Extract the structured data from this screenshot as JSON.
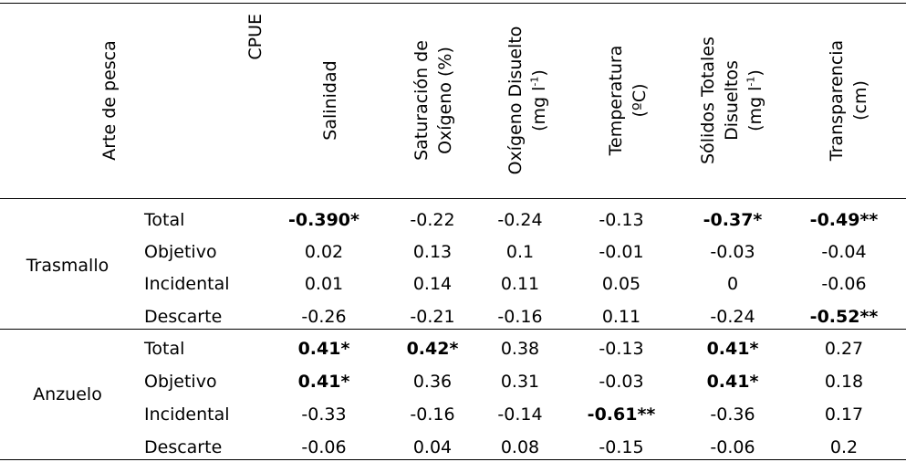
{
  "headers": {
    "arte": "Arte de pesca",
    "cpue": "CPUE",
    "salinidad": "Salinidad",
    "saturacion_l1": "Saturación de",
    "saturacion_l2": "Oxígeno (%)",
    "oxigeno_l1": "Oxígeno Disuelto",
    "oxigeno_l2a": "(mg l",
    "oxigeno_sup": "-1",
    "oxigeno_l2b": ")",
    "temperatura_l1": "Temperatura",
    "temperatura_l2": "(ºC)",
    "solidos_l1": "Sólidos Totales",
    "solidos_l2": "Disueltos",
    "solidos_l3a": "(mg l",
    "solidos_sup": "-1",
    "solidos_l3b": ")",
    "transparencia_l1": "Transparencia",
    "transparencia_l2": "(cm)"
  },
  "groups": [
    {
      "name": "Trasmallo",
      "rows": [
        {
          "label": "Total",
          "values": [
            "-0.390*",
            "-0.22",
            "-0.24",
            "-0.13",
            "-0.37*",
            "-0.49**"
          ],
          "bold": [
            true,
            false,
            false,
            false,
            true,
            true
          ]
        },
        {
          "label": "Objetivo",
          "values": [
            "0.02",
            "0.13",
            "0.1",
            "-0.01",
            "-0.03",
            "-0.04"
          ],
          "bold": [
            false,
            false,
            false,
            false,
            false,
            false
          ]
        },
        {
          "label": "Incidental",
          "values": [
            "0.01",
            "0.14",
            "0.11",
            "0.05",
            "0",
            "-0.06"
          ],
          "bold": [
            false,
            false,
            false,
            false,
            false,
            false
          ]
        },
        {
          "label": "Descarte",
          "values": [
            "-0.26",
            "-0.21",
            "-0.16",
            "0.11",
            "-0.24",
            "-0.52**"
          ],
          "bold": [
            false,
            false,
            false,
            false,
            false,
            true
          ]
        }
      ]
    },
    {
      "name": "Anzuelo",
      "rows": [
        {
          "label": "Total",
          "values": [
            "0.41*",
            "0.42*",
            "0.38",
            "-0.13",
            "0.41*",
            "0.27"
          ],
          "bold": [
            true,
            true,
            false,
            false,
            true,
            false
          ]
        },
        {
          "label": "Objetivo",
          "values": [
            "0.41*",
            "0.36",
            "0.31",
            "-0.03",
            "0.41*",
            "0.18"
          ],
          "bold": [
            true,
            false,
            false,
            false,
            true,
            false
          ]
        },
        {
          "label": "Incidental",
          "values": [
            "-0.33",
            "-0.16",
            "-0.14",
            "-0.61**",
            "-0.36",
            "0.17"
          ],
          "bold": [
            false,
            false,
            false,
            true,
            false,
            false
          ]
        },
        {
          "label": "Descarte",
          "values": [
            "-0.06",
            "0.04",
            "0.08",
            "-0.15",
            "-0.06",
            "0.2"
          ],
          "bold": [
            false,
            false,
            false,
            false,
            false,
            false
          ]
        }
      ]
    }
  ]
}
